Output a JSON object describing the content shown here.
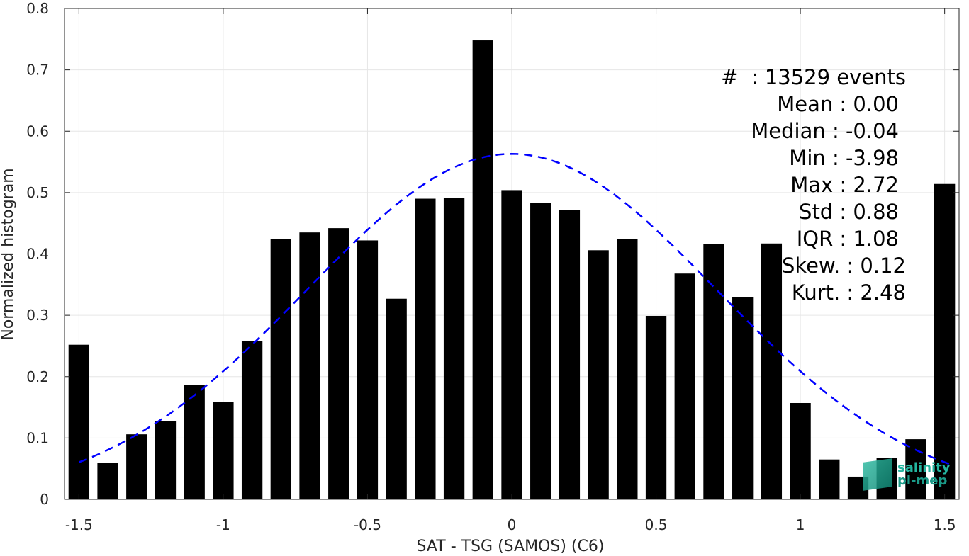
{
  "chart_data": {
    "type": "bar",
    "xlabel": "SAT - TSG (SAMOS) (C6)",
    "ylabel": "Normalized histogram",
    "xlim": [
      -1.55,
      1.55
    ],
    "ylim": [
      0,
      0.8
    ],
    "grid": true,
    "xticks": [
      -1.5,
      -1,
      -0.5,
      0,
      0.5,
      1,
      1.5
    ],
    "xtick_labels": [
      "-1.5",
      "-1",
      "-0.5",
      "0",
      "0.5",
      "1",
      "1.5"
    ],
    "yticks": [
      0,
      0.1,
      0.2,
      0.3,
      0.4,
      0.5,
      0.6,
      0.7,
      0.8
    ],
    "ytick_labels": [
      "0",
      "0.1",
      "0.2",
      "0.3",
      "0.4",
      "0.5",
      "0.6",
      "0.7",
      "0.8"
    ],
    "bar_color": "#000000",
    "bar_width": 0.072,
    "bins": [
      {
        "x": -1.5,
        "y": 0.252
      },
      {
        "x": -1.4,
        "y": 0.059
      },
      {
        "x": -1.3,
        "y": 0.106
      },
      {
        "x": -1.2,
        "y": 0.127
      },
      {
        "x": -1.1,
        "y": 0.186
      },
      {
        "x": -1.0,
        "y": 0.159
      },
      {
        "x": -0.9,
        "y": 0.258
      },
      {
        "x": -0.8,
        "y": 0.424
      },
      {
        "x": -0.7,
        "y": 0.435
      },
      {
        "x": -0.6,
        "y": 0.442
      },
      {
        "x": -0.5,
        "y": 0.422
      },
      {
        "x": -0.4,
        "y": 0.327
      },
      {
        "x": -0.3,
        "y": 0.49
      },
      {
        "x": -0.2,
        "y": 0.491
      },
      {
        "x": -0.1,
        "y": 0.748
      },
      {
        "x": 0.0,
        "y": 0.504
      },
      {
        "x": 0.1,
        "y": 0.483
      },
      {
        "x": 0.2,
        "y": 0.472
      },
      {
        "x": 0.3,
        "y": 0.406
      },
      {
        "x": 0.4,
        "y": 0.424
      },
      {
        "x": 0.5,
        "y": 0.299
      },
      {
        "x": 0.6,
        "y": 0.368
      },
      {
        "x": 0.7,
        "y": 0.416
      },
      {
        "x": 0.8,
        "y": 0.329
      },
      {
        "x": 0.9,
        "y": 0.417
      },
      {
        "x": 1.0,
        "y": 0.157
      },
      {
        "x": 1.1,
        "y": 0.065
      },
      {
        "x": 1.2,
        "y": 0.037
      },
      {
        "x": 1.3,
        "y": 0.068
      },
      {
        "x": 1.4,
        "y": 0.098
      },
      {
        "x": 1.5,
        "y": 0.514
      }
    ],
    "fit_curve": {
      "type": "gaussian",
      "mean": 0.0,
      "std": 0.71,
      "peak": 0.563,
      "x_range": [
        -1.5,
        1.53
      ],
      "color": "#0000ff",
      "style": "dashed"
    },
    "annotation_lines": [
      "#  : 13529 events",
      "Mean : 0.00",
      "Median : -0.04",
      "Min : -3.98",
      "Max : 2.72",
      "Std : 0.88",
      "IQR : 1.08",
      "Skew. : 0.12",
      "Kurt. : 2.48"
    ]
  },
  "logo": {
    "line1": "salinity",
    "line2": "pi-mep"
  }
}
